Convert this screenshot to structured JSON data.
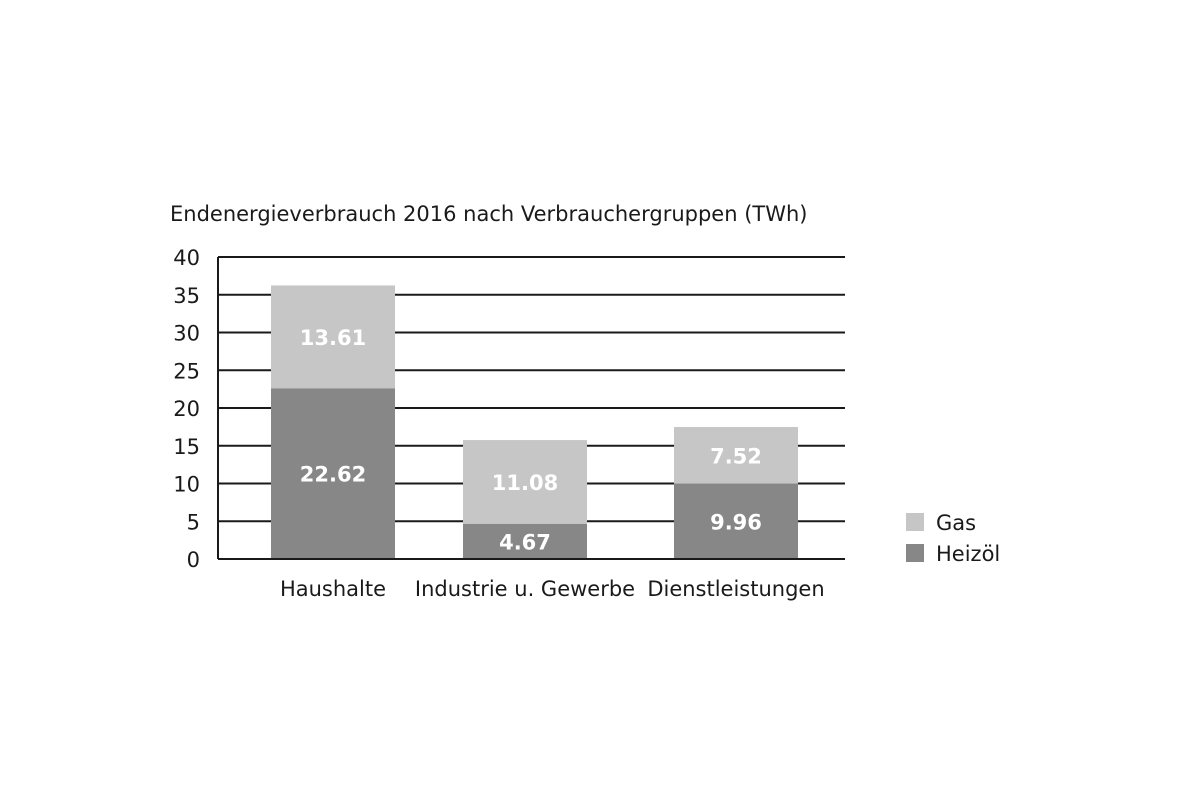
{
  "chart_data": {
    "type": "bar",
    "stacked": true,
    "title": "Endenergieverbrauch 2016 nach Verbrauchergruppen (TWh)",
    "xlabel": "",
    "ylabel": "",
    "categories": [
      "Haushalte",
      "Industrie u. Gewerbe",
      "Dienstleistungen"
    ],
    "series": [
      {
        "name": "Heizöl",
        "color": "#878787",
        "values": [
          22.62,
          4.67,
          9.96
        ],
        "labels": [
          "22.62",
          "4.67",
          "9.96"
        ]
      },
      {
        "name": "Gas",
        "color": "#c6c6c6",
        "values": [
          13.61,
          11.08,
          7.52
        ],
        "labels": [
          "13.61",
          "11.08",
          "7.52"
        ]
      }
    ],
    "ylim": [
      0,
      40
    ],
    "yticks": [
      "0",
      "5",
      "10",
      "15",
      "20",
      "25",
      "30",
      "35",
      "40"
    ],
    "grid": true,
    "legend": {
      "position": "right",
      "order": [
        "Gas",
        "Heizöl"
      ]
    },
    "label_color": "#ffffff"
  }
}
